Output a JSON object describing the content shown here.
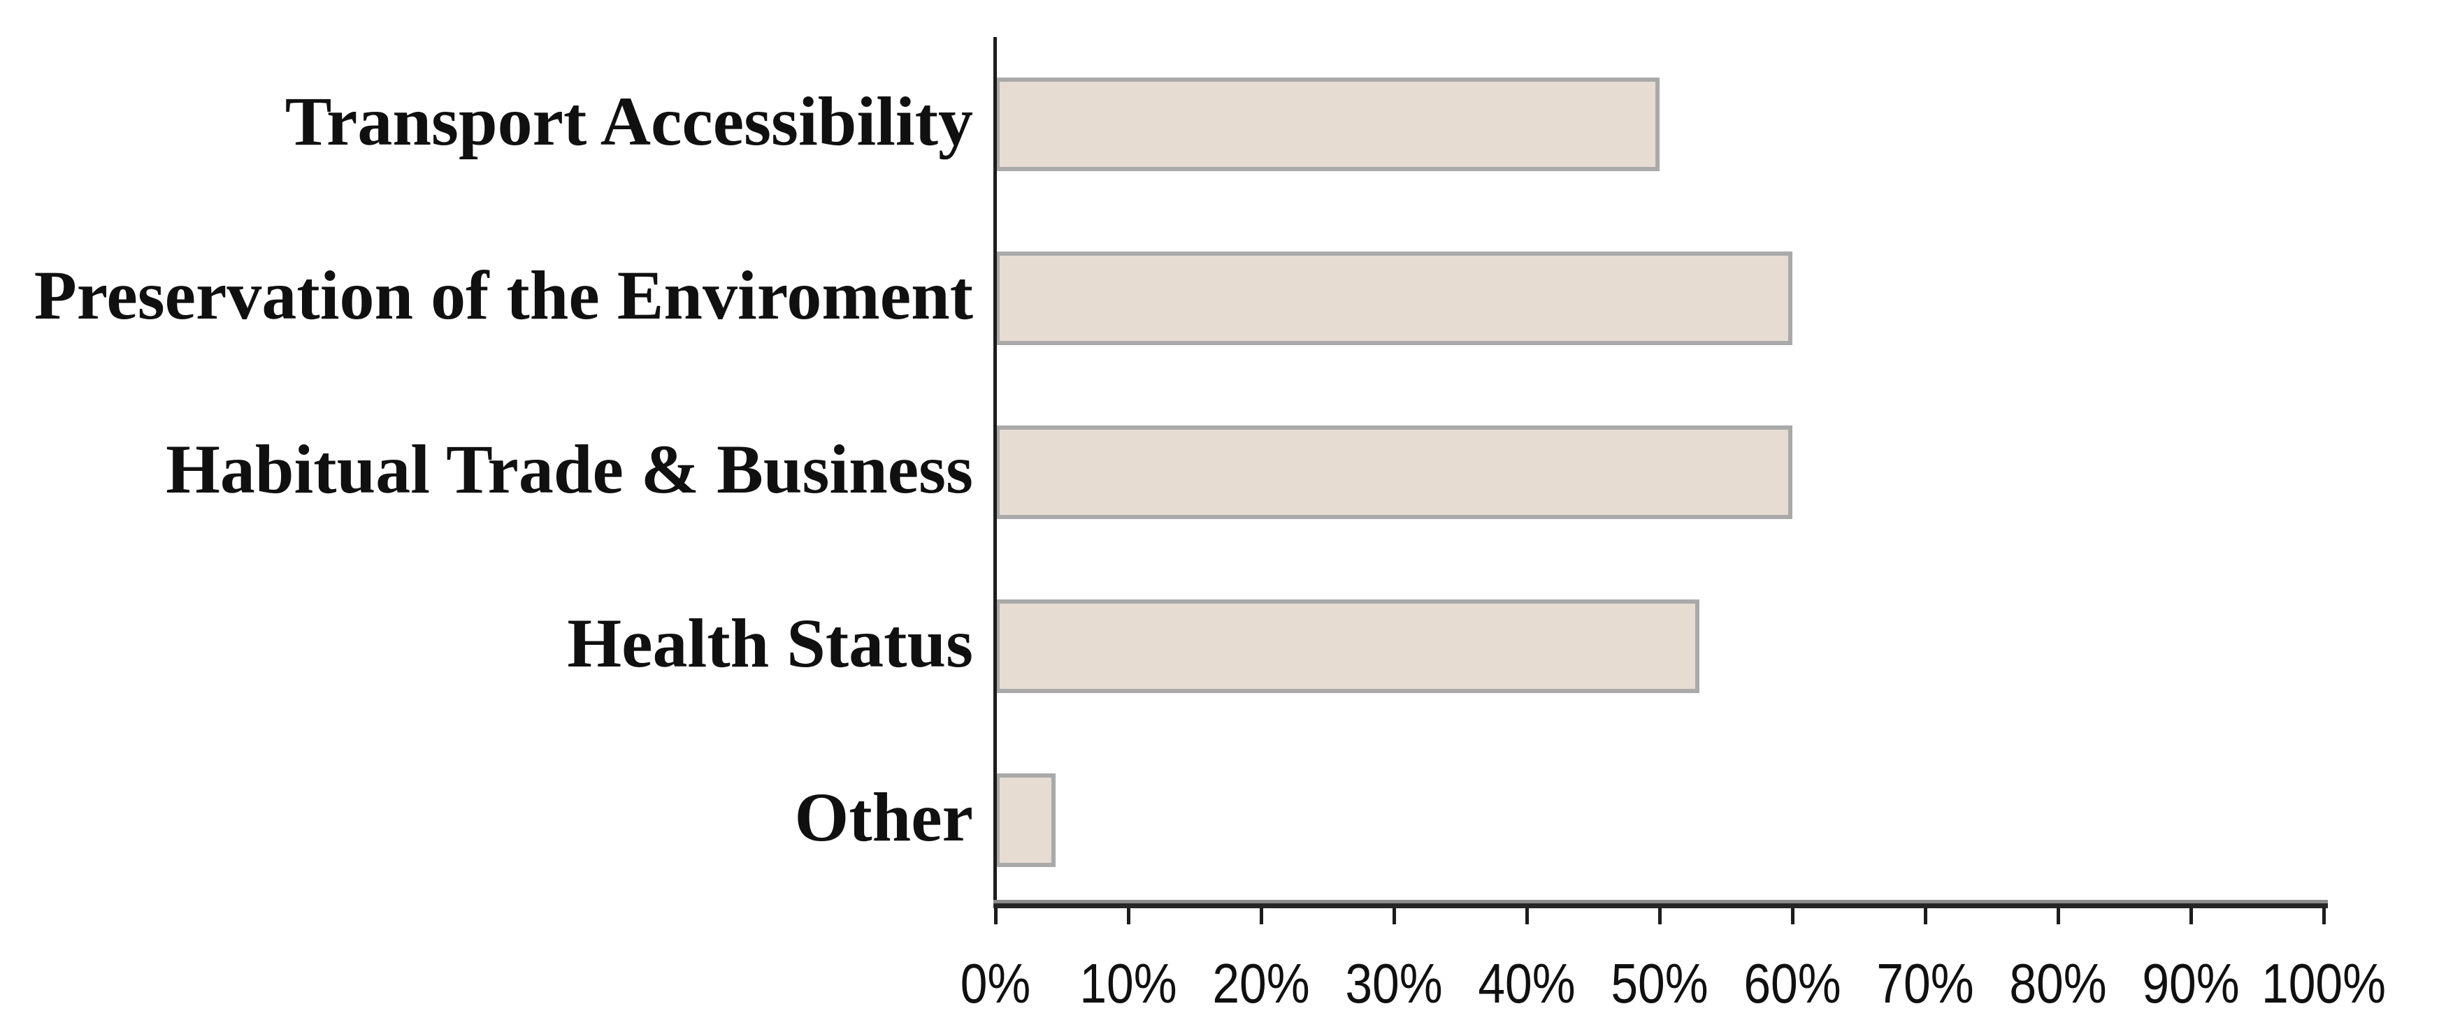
{
  "chart_data": {
    "type": "bar",
    "orientation": "horizontal",
    "title": "",
    "xlabel": "",
    "ylabel": "",
    "categories": [
      "Transport Accessibility",
      "Preservation of the Enviroment",
      "Habitual Trade & Business",
      "Health Status",
      "Other"
    ],
    "values": [
      50,
      60,
      60,
      53,
      4.5
    ],
    "value_unit": "percent",
    "xlim": [
      0,
      100
    ],
    "x_tick_step": 10,
    "x_ticks": [
      "0%",
      "10%",
      "20%",
      "30%",
      "40%",
      "50%",
      "60%",
      "70%",
      "80%",
      "90%",
      "100%"
    ],
    "grid": false,
    "legend": "none",
    "plot_background": "#ffffff",
    "bar_fill_color": "#e7dcd2",
    "bar_border_color": "#a9a9a9",
    "axis_color": "#1c1c1c",
    "text_color": "#101010"
  }
}
